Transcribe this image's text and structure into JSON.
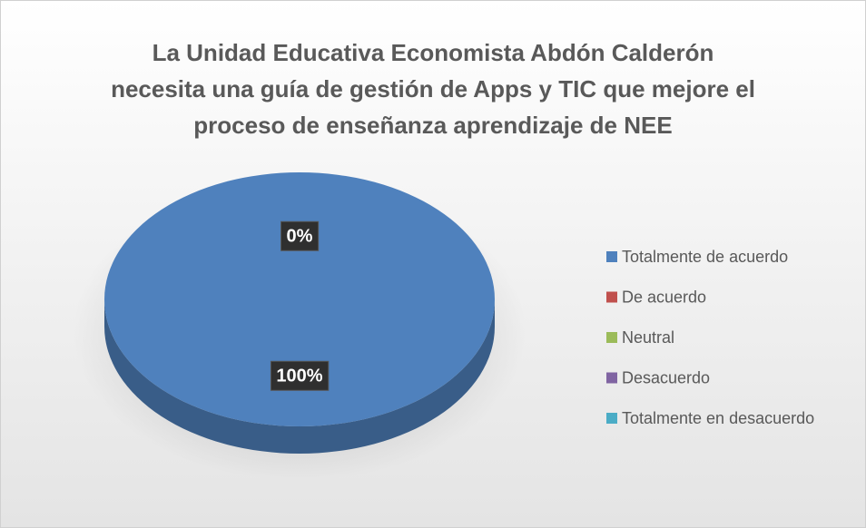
{
  "chart_data": {
    "type": "pie",
    "title": [
      "La Unidad Educativa Economista Abdón Calderón",
      "necesita una guía de gestión de Apps y TIC que mejore el",
      "proceso de enseñanza aprendizaje de NEE"
    ],
    "categories": [
      "Totalmente de acuerdo",
      "De acuerdo",
      "Neutral",
      "Desacuerdo",
      "Totalmente en desacuerdo"
    ],
    "values": [
      100,
      0,
      0,
      0,
      0
    ],
    "value_labels": [
      "100%",
      "0%",
      null,
      null,
      null
    ],
    "colors": [
      "#4f81bd",
      "#c0504d",
      "#9bbb59",
      "#8064a2",
      "#4bacc6"
    ],
    "legend": "right"
  }
}
